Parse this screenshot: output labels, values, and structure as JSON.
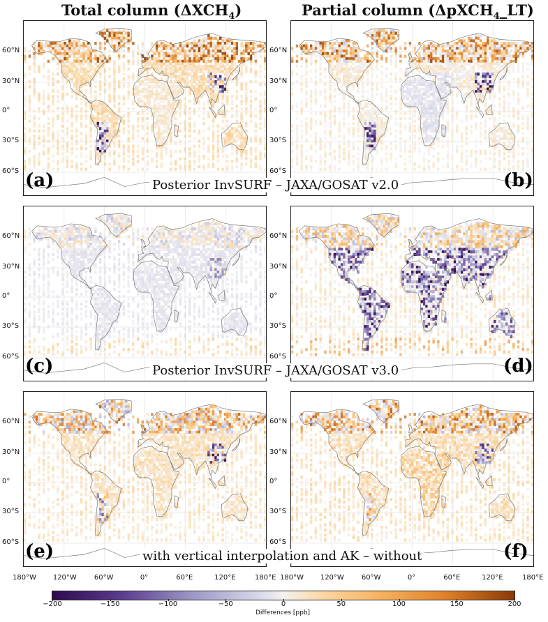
{
  "titles": {
    "left_main": "Total column (ΔXCH",
    "left_sub": "4",
    "left_end": ")",
    "right_main": "Partial column (ΔpXCH",
    "right_sub": "4",
    "right_end": "_LT)"
  },
  "panels": [
    {
      "letter": "(a)",
      "pattern": "totalA"
    },
    {
      "letter": "(b)",
      "pattern": "partialB"
    },
    {
      "letter": "(c)",
      "pattern": "totalC"
    },
    {
      "letter": "(d)",
      "pattern": "partialD"
    },
    {
      "letter": "(e)",
      "pattern": "totalE"
    },
    {
      "letter": "(f)",
      "pattern": "partialF"
    }
  ],
  "row_captions": [
    "Posterior InvSURF – JAXA/GOSAT v2.0",
    "Posterior InvSURF – JAXA/GOSAT v3.0",
    "with vertical interpolation and AK – without"
  ],
  "lat_labels": [
    "60°N",
    "30°N",
    "0°",
    "30°S",
    "60°S"
  ],
  "lon_labels": [
    "180°W",
    "120°W",
    "60°W",
    "0°",
    "60°E",
    "120°E",
    "180°E"
  ],
  "colorbar": {
    "label": "Differences [ppb]",
    "ticks": [
      "−200",
      "−150",
      "−100",
      "−50",
      "0",
      "50",
      "100",
      "150",
      "200"
    ],
    "min": -200,
    "max": 200,
    "colors": [
      "#2d0b4e",
      "#5b3b8e",
      "#9b96c6",
      "#d9d9ea",
      "#f4f2f0",
      "#fbd9a8",
      "#f7b564",
      "#e0812a",
      "#8a3a06"
    ]
  }
}
